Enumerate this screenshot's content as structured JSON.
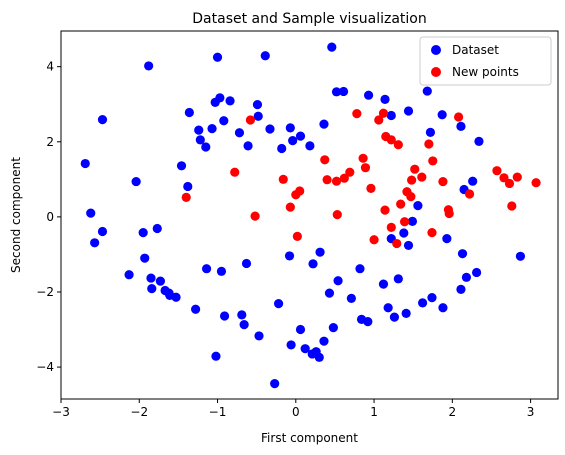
{
  "chart_data": {
    "type": "scatter",
    "title": "Dataset and Sample visualization",
    "xlabel": "First component",
    "ylabel": "Second component",
    "xlim": [
      -3.0,
      3.35
    ],
    "ylim": [
      -4.85,
      4.95
    ],
    "xticks": [
      -3,
      -2,
      -1,
      0,
      1,
      2,
      3
    ],
    "yticks": [
      -4,
      -2,
      0,
      2,
      4
    ],
    "xtick_labels": [
      "−3",
      "−2",
      "−1",
      "0",
      "1",
      "2",
      "3"
    ],
    "ytick_labels": [
      "−4",
      "−2",
      "0",
      "2",
      "4"
    ],
    "grid": false,
    "legend": {
      "placement": "top-right"
    },
    "series": [
      {
        "name": "Dataset",
        "color": "#0000ff",
        "x": [
          0.46,
          -1.88,
          -2.47,
          -2.69,
          -2.62,
          -2.57,
          -2.47,
          -2.13,
          -1.93,
          -1.85,
          -1.73,
          -1.84,
          -1.62,
          -1.0,
          -0.97,
          -1.03,
          -0.49,
          -0.39,
          -0.84,
          -0.48,
          -1.36,
          -1.24,
          -1.22,
          -1.15,
          -1.07,
          -0.92,
          -0.72,
          -0.61,
          -0.33,
          -0.18,
          -0.07,
          0.06,
          0.18,
          0.36,
          -0.04,
          0.61,
          0.52,
          0.93,
          1.14,
          1.22,
          1.44,
          1.68,
          1.87,
          1.72,
          2.11,
          2.34,
          2.15,
          2.26,
          1.56,
          1.38,
          1.22,
          1.44,
          2.87,
          2.31,
          2.18,
          2.11,
          1.74,
          1.88,
          1.62,
          1.41,
          1.26,
          1.18,
          0.92,
          0.84,
          0.48,
          0.36,
          0.26,
          0.12,
          0.06,
          0.21,
          0.3,
          -0.06,
          -0.27,
          -0.47,
          -0.66,
          -0.69,
          -0.91,
          -1.02,
          -1.28,
          -1.53,
          -1.61,
          -1.67,
          -0.22,
          -0.63,
          -0.08,
          0.31,
          0.22,
          -0.95,
          -1.14,
          1.12,
          1.31,
          0.82,
          0.54,
          0.71,
          0.43,
          -1.95,
          -1.77,
          -2.04,
          -1.38,
          -1.46,
          1.93,
          2.13,
          1.49
        ],
        "y": [
          4.52,
          4.02,
          2.59,
          1.42,
          0.1,
          -0.69,
          -0.39,
          -1.54,
          -1.1,
          -1.63,
          -1.71,
          -1.91,
          -2.03,
          4.25,
          3.17,
          3.05,
          2.99,
          4.29,
          3.09,
          2.68,
          2.78,
          2.31,
          2.05,
          1.86,
          2.35,
          2.56,
          2.24,
          1.89,
          2.34,
          1.82,
          2.37,
          2.15,
          1.89,
          2.47,
          2.03,
          3.34,
          3.33,
          3.24,
          3.13,
          2.7,
          2.82,
          3.35,
          2.72,
          2.25,
          2.41,
          2.01,
          0.73,
          0.95,
          0.3,
          -0.43,
          -0.58,
          -0.76,
          -1.05,
          -1.48,
          -1.61,
          -1.93,
          -2.15,
          -2.42,
          -2.29,
          -2.57,
          -2.67,
          -2.42,
          -2.79,
          -2.73,
          -2.95,
          -3.31,
          -3.59,
          -3.51,
          -3.0,
          -3.65,
          -3.74,
          -3.41,
          -4.44,
          -3.17,
          -2.87,
          -2.61,
          -2.64,
          -3.71,
          -2.46,
          -2.14,
          -2.09,
          -1.96,
          -2.31,
          -1.24,
          -1.04,
          -0.94,
          -1.25,
          -1.45,
          -1.38,
          -1.79,
          -1.65,
          -1.38,
          -1.7,
          -2.17,
          -2.03,
          -0.42,
          -0.31,
          0.94,
          0.81,
          1.36,
          -0.58,
          -0.98,
          -0.12
        ]
      },
      {
        "name": "New points",
        "color": "#ff0000",
        "x": [
          -0.58,
          -0.78,
          -0.52,
          -1.4,
          0.0,
          0.05,
          -0.16,
          -0.07,
          0.02,
          0.37,
          0.4,
          0.52,
          0.62,
          0.69,
          0.78,
          0.86,
          0.96,
          1.06,
          1.12,
          1.15,
          1.22,
          1.31,
          1.34,
          1.39,
          1.47,
          1.48,
          1.52,
          1.61,
          1.7,
          1.75,
          1.88,
          1.95,
          1.96,
          2.08,
          2.22,
          2.57,
          2.66,
          2.73,
          2.83,
          3.07,
          2.76,
          1.14,
          1.29,
          1.42,
          1.22,
          0.89,
          1.0,
          1.74,
          0.53
        ],
        "y": [
          2.58,
          1.19,
          0.02,
          0.52,
          0.59,
          0.69,
          1.0,
          0.26,
          -0.52,
          1.52,
          0.99,
          0.95,
          1.03,
          1.19,
          2.75,
          1.56,
          0.76,
          2.58,
          2.76,
          2.14,
          2.05,
          1.92,
          0.34,
          -0.13,
          0.54,
          0.98,
          1.27,
          1.06,
          1.94,
          1.49,
          0.94,
          0.19,
          0.09,
          2.66,
          0.61,
          1.23,
          1.04,
          0.89,
          1.06,
          0.91,
          0.29,
          0.18,
          -0.71,
          0.67,
          -0.28,
          1.31,
          -0.61,
          -0.42,
          0.06
        ]
      }
    ]
  }
}
